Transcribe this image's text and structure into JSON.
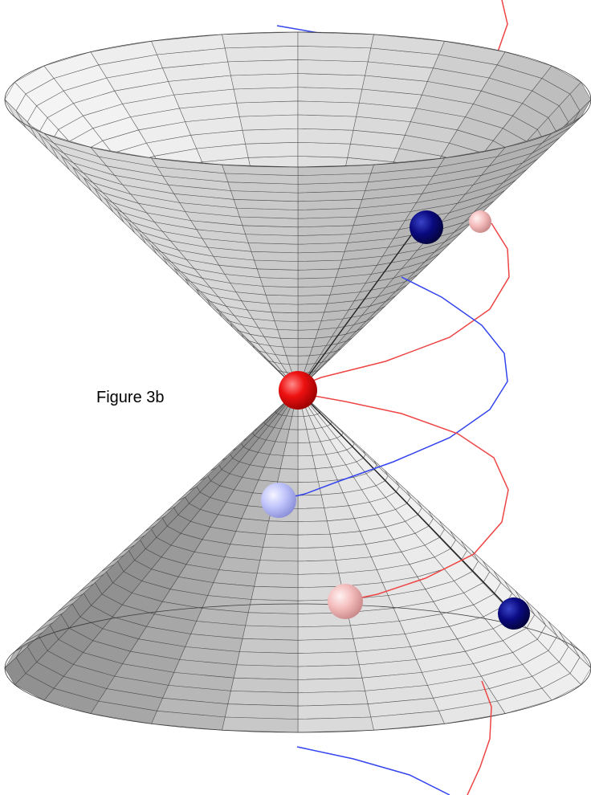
{
  "figure": {
    "caption": "Figure 3b"
  },
  "colors": {
    "background": "#ffffff",
    "cone_light": "#f6f6f6",
    "cone_mid": "#d9d9d9",
    "cone_dark": "#8c8c8c",
    "mesh_line": "#3a3a3a",
    "red_line": "#ee4444",
    "blue_line": "#3344ee",
    "apex_sphere": "#ee1111",
    "dark_blue_sphere": "#0a0a80",
    "light_blue_sphere": "#c8cbff",
    "pink_sphere": "#f5c0c0"
  },
  "spheres": [
    {
      "name": "apex-sphere",
      "color": "apex_sphere"
    },
    {
      "name": "upper-dark-blue-sphere",
      "color": "dark_blue_sphere"
    },
    {
      "name": "upper-pink-sphere",
      "color": "pink_sphere"
    },
    {
      "name": "lower-light-blue-sphere",
      "color": "light_blue_sphere"
    },
    {
      "name": "lower-pink-sphere",
      "color": "pink_sphere"
    },
    {
      "name": "lower-dark-blue-sphere",
      "color": "dark_blue_sphere"
    }
  ]
}
